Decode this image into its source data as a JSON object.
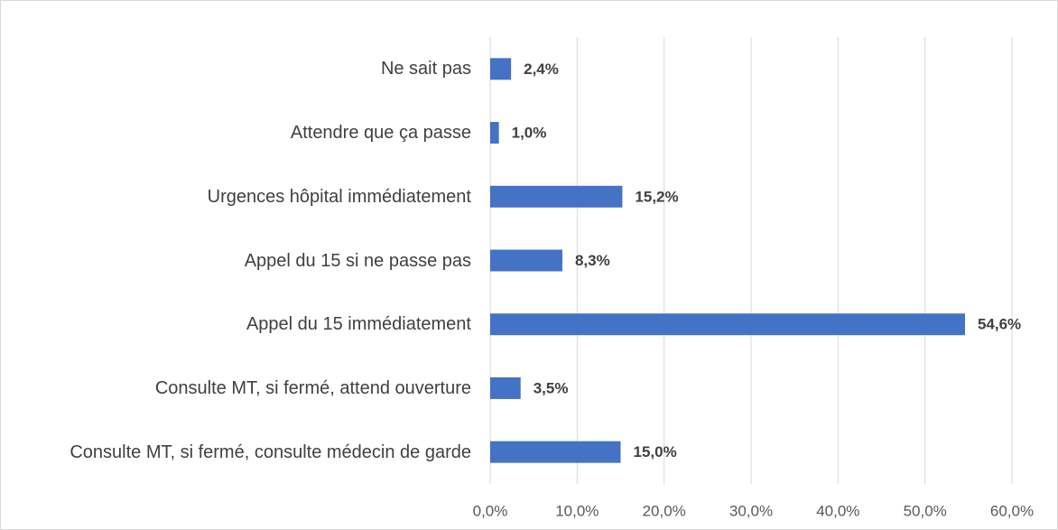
{
  "chart_data": {
    "type": "bar",
    "orientation": "horizontal",
    "categories": [
      "Ne sait pas",
      "Attendre que ça passe",
      "Urgences hôpital immédiatement",
      "Appel du 15 si ne passe pas",
      "Appel du 15 immédiatement",
      "Consulte MT, si fermé, attend ouverture",
      "Consulte MT, si fermé, consulte médecin de garde"
    ],
    "values": [
      2.4,
      1.0,
      15.2,
      8.3,
      54.6,
      3.5,
      15.0
    ],
    "value_labels": [
      "2,4%",
      "1,0%",
      "15,2%",
      "8,3%",
      "54,6%",
      "3,5%",
      "15,0%"
    ],
    "color": "#4472c4",
    "xlim": [
      0,
      60
    ],
    "xticks": [
      {
        "value": 0,
        "label": "0,0%"
      },
      {
        "value": 10,
        "label": "10,0%"
      },
      {
        "value": 20,
        "label": "20,0%"
      },
      {
        "value": 30,
        "label": "30,0%"
      },
      {
        "value": 40,
        "label": "40,0%"
      },
      {
        "value": 50,
        "label": "50,0%"
      },
      {
        "value": 60,
        "label": "60,0%"
      }
    ],
    "grid": true
  }
}
